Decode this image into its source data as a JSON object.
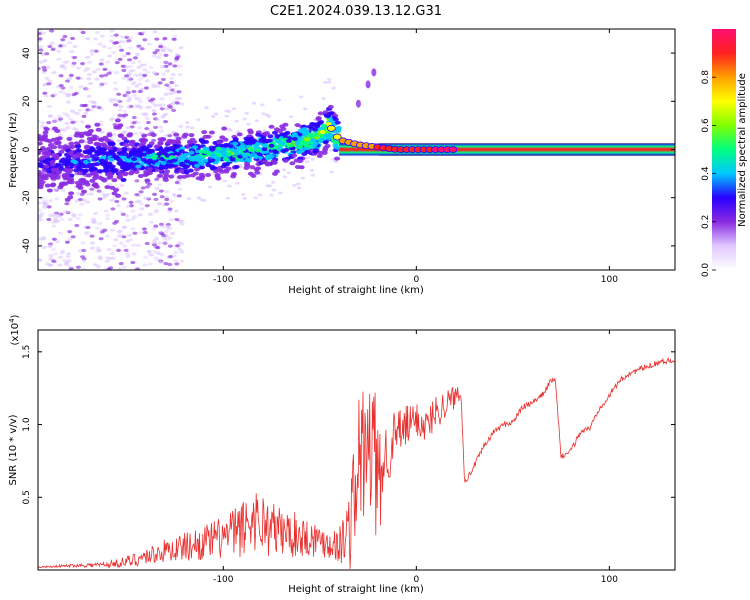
{
  "title": "C2E1.2024.039.13.12.G31",
  "chart_data": [
    {
      "type": "heatmap",
      "name": "spectrogram",
      "xlabel": "Height of straight line (km)",
      "ylabel": "Frequency (Hz)",
      "xlim": [
        -196,
        134
      ],
      "ylim": [
        -50,
        50
      ],
      "xticks": [
        -100,
        0,
        100
      ],
      "yticks": [
        -40,
        -20,
        0,
        20,
        40
      ],
      "colorbar": {
        "label": "Normalized spectral amplitude",
        "range": [
          0,
          1
        ],
        "ticks": [
          0.0,
          0.2,
          0.4,
          0.6,
          0.8
        ],
        "colormap": [
          "#ffffff",
          "#e0c8ff",
          "#8a2be2",
          "#2a00ff",
          "#00c8ff",
          "#00ff80",
          "#80ff00",
          "#ffff00",
          "#ffa000",
          "#ff2020",
          "#ff1070"
        ]
      },
      "ridge": {
        "description": "signal frequency trace vs height",
        "x": [
          -196,
          -150,
          -120,
          -100,
          -80,
          -60,
          -50,
          -45,
          -40,
          -30,
          -20,
          -10,
          0,
          10,
          20,
          134
        ],
        "y": [
          -6,
          -4,
          -3,
          -2,
          0,
          3,
          6,
          10,
          4,
          2,
          1,
          0,
          0,
          0,
          0,
          0
        ],
        "amplitude": [
          0.15,
          0.35,
          0.45,
          0.5,
          0.5,
          0.55,
          0.6,
          0.7,
          0.75,
          0.8,
          0.85,
          0.9,
          0.9,
          0.95,
          1.0,
          1.0
        ]
      },
      "scatter_branch": {
        "x": [
          -30,
          -25,
          -22
        ],
        "y": [
          19,
          27,
          32
        ]
      }
    },
    {
      "type": "line",
      "name": "snr",
      "xlabel": "Height of straight line (km)",
      "ylabel": "SNR (10 * v/v)",
      "y_multiplier": "(x10^4)",
      "y_multiplier_base": "(x10",
      "y_multiplier_exp": "4",
      "y_multiplier_close": ")",
      "xlim": [
        -196,
        134
      ],
      "ylim": [
        0,
        1.65
      ],
      "xticks": [
        -100,
        0,
        100
      ],
      "yticks": [
        0.5,
        1.0,
        1.5
      ],
      "series": [
        {
          "name": "SNR",
          "color": "#e8302e",
          "x": [
            -196,
            -180,
            -160,
            -150,
            -140,
            -130,
            -120,
            -110,
            -100,
            -90,
            -85,
            -80,
            -75,
            -70,
            -60,
            -50,
            -45,
            -40,
            -35,
            -32,
            -30,
            -25,
            -22,
            -20,
            -15,
            -10,
            -5,
            0,
            5,
            10,
            15,
            20,
            23,
            25,
            27,
            30,
            35,
            40,
            45,
            50,
            55,
            60,
            65,
            70,
            72,
            75,
            80,
            85,
            90,
            95,
            100,
            105,
            110,
            115,
            120,
            125,
            134
          ],
          "y": [
            0.02,
            0.03,
            0.04,
            0.06,
            0.1,
            0.14,
            0.17,
            0.2,
            0.24,
            0.3,
            0.38,
            0.35,
            0.3,
            0.28,
            0.25,
            0.22,
            0.2,
            0.18,
            0.3,
            0.55,
            0.8,
            0.85,
            0.9,
            0.6,
            0.85,
            0.95,
            1.0,
            1.05,
            1.0,
            1.1,
            1.15,
            1.2,
            1.25,
            0.62,
            0.64,
            0.72,
            0.85,
            0.95,
            1.0,
            1.02,
            1.12,
            1.15,
            1.2,
            1.31,
            1.3,
            0.78,
            0.82,
            0.95,
            0.98,
            1.12,
            1.2,
            1.3,
            1.35,
            1.38,
            1.4,
            1.43,
            1.45
          ],
          "noise": [
            0.005,
            0.01,
            0.02,
            0.04,
            0.06,
            0.08,
            0.1,
            0.12,
            0.15,
            0.2,
            0.22,
            0.22,
            0.2,
            0.18,
            0.15,
            0.12,
            0.12,
            0.12,
            0.3,
            0.4,
            0.5,
            0.55,
            0.6,
            0.4,
            0.25,
            0.18,
            0.15,
            0.12,
            0.12,
            0.12,
            0.1,
            0.08,
            0.06,
            0.02,
            0.02,
            0.02,
            0.02,
            0.02,
            0.02,
            0.02,
            0.02,
            0.02,
            0.02,
            0.02,
            0.02,
            0.02,
            0.02,
            0.02,
            0.02,
            0.02,
            0.02,
            0.02,
            0.02,
            0.02,
            0.02,
            0.02,
            0.02
          ]
        }
      ]
    }
  ]
}
